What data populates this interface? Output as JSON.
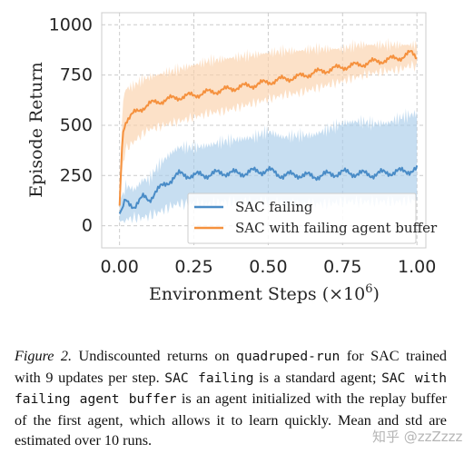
{
  "chart_data": {
    "type": "line",
    "xlabel": "Environment Steps (×10",
    "xlabel_exp": "6",
    "xlabel_close": ")",
    "ylabel": "Episode Return",
    "xlim": [
      -0.06,
      1.03
    ],
    "ylim": [
      -110,
      1060
    ],
    "xticks": [
      0.0,
      0.25,
      0.5,
      0.75,
      1.0
    ],
    "xtick_labels": [
      "0.00",
      "0.25",
      "0.50",
      "0.75",
      "1.00"
    ],
    "yticks": [
      0,
      250,
      500,
      750,
      1000
    ],
    "ytick_labels": [
      "0",
      "250",
      "500",
      "750",
      "1000"
    ],
    "grid": true,
    "legend_position": "lower-right",
    "series": [
      {
        "name": "SAC failing",
        "color": "#4a8cc7",
        "band_color": "#a9cde9",
        "x": [
          0.0,
          0.02,
          0.05,
          0.08,
          0.1,
          0.12,
          0.15,
          0.18,
          0.2,
          0.25,
          0.3,
          0.35,
          0.4,
          0.45,
          0.5,
          0.55,
          0.6,
          0.65,
          0.7,
          0.75,
          0.8,
          0.85,
          0.9,
          0.95,
          1.0
        ],
        "mean": [
          60,
          120,
          100,
          140,
          130,
          170,
          200,
          240,
          255,
          250,
          255,
          265,
          260,
          270,
          275,
          250,
          255,
          245,
          255,
          265,
          260,
          255,
          265,
          270,
          280
        ],
        "lower": [
          20,
          30,
          40,
          40,
          50,
          60,
          80,
          100,
          110,
          110,
          110,
          120,
          120,
          120,
          120,
          110,
          110,
          110,
          110,
          120,
          120,
          120,
          120,
          120,
          130
        ],
        "upper": [
          120,
          200,
          180,
          230,
          230,
          280,
          330,
          370,
          390,
          390,
          400,
          420,
          430,
          440,
          470,
          440,
          450,
          450,
          480,
          510,
          520,
          510,
          510,
          540,
          560
        ]
      },
      {
        "name": "SAC with failing agent buffer",
        "color": "#f5913e",
        "band_color": "#fbd1ab",
        "x": [
          0.0,
          0.01,
          0.02,
          0.05,
          0.08,
          0.1,
          0.15,
          0.2,
          0.25,
          0.3,
          0.35,
          0.4,
          0.45,
          0.5,
          0.55,
          0.6,
          0.65,
          0.7,
          0.75,
          0.8,
          0.85,
          0.9,
          0.95,
          0.98,
          1.0
        ],
        "mean": [
          100,
          450,
          520,
          560,
          590,
          605,
          625,
          640,
          650,
          665,
          675,
          690,
          700,
          715,
          730,
          740,
          760,
          775,
          790,
          800,
          815,
          825,
          840,
          860,
          840
        ],
        "lower": [
          70,
          300,
          380,
          420,
          460,
          480,
          500,
          520,
          540,
          560,
          570,
          590,
          610,
          630,
          650,
          660,
          680,
          700,
          720,
          740,
          760,
          770,
          780,
          800,
          790
        ],
        "upper": [
          140,
          600,
          680,
          700,
          730,
          740,
          760,
          780,
          800,
          820,
          830,
          840,
          850,
          860,
          870,
          870,
          880,
          880,
          880,
          900,
          900,
          900,
          900,
          900,
          900
        ]
      }
    ]
  },
  "caption": {
    "fig_label": "Figure 2.",
    "t1": " Undiscounted returns on ",
    "m1": "quadruped-run",
    "t2": " for SAC trained with 9 updates per step. ",
    "m2": "SAC failing",
    "t3": " is a standard agent; ",
    "m3": "SAC with failing agent buffer",
    "t4": " is an agent initialized with the replay buffer of the first agent, which allows it to learn quickly. Mean and std are estimated over 10 runs."
  },
  "watermark": "知乎 @zzZzzz"
}
